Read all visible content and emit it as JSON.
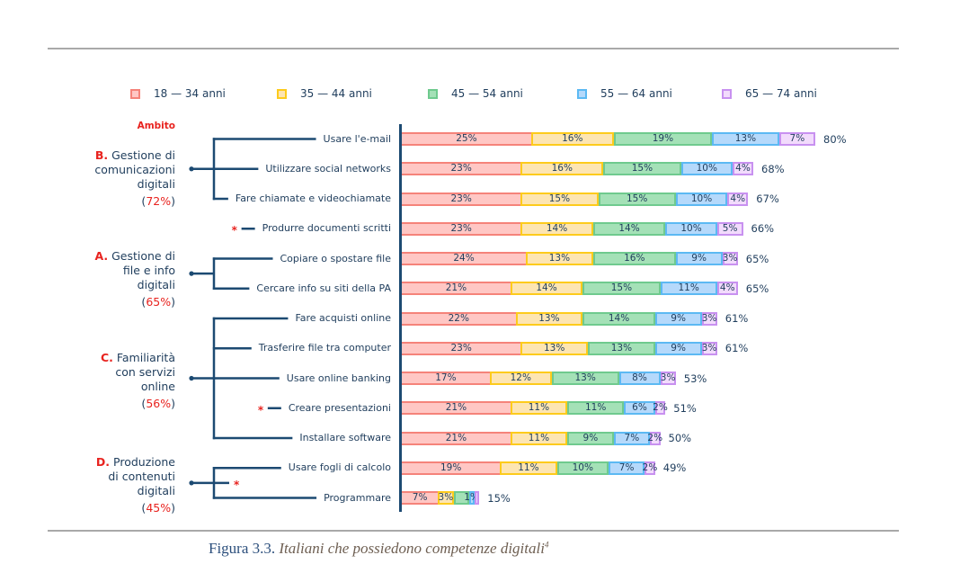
{
  "ambito_label": "Ambito",
  "asterisk": "*",
  "groups": [
    {
      "letter": "B.",
      "lines": [
        "Gestione di",
        "comunicazioni",
        "digitali"
      ],
      "pct": "72%",
      "rows": [
        0,
        1,
        2
      ],
      "starred": false
    },
    {
      "letter": "A.",
      "lines": [
        "Gestione di",
        "file e info",
        "digitali"
      ],
      "pct": "65%",
      "rows": [
        4,
        5
      ],
      "starred": false
    },
    {
      "letter": "C.",
      "lines": [
        "Familiarità",
        "con servizi",
        "online"
      ],
      "pct": "56%",
      "rows": [
        6,
        7,
        8,
        9,
        10
      ],
      "starred": false
    },
    {
      "letter": "D.",
      "lines": [
        "Produzione",
        "di contenuti",
        "digitali"
      ],
      "pct": "45%",
      "rows": [
        11,
        12
      ],
      "starred": true
    }
  ],
  "starred_rows": [
    3,
    9
  ],
  "caption": {
    "number": "Figura 3.3.",
    "title": "Italiani che possiedono competenze digitali",
    "footnote": "4"
  },
  "chart_data": {
    "type": "bar",
    "orientation": "horizontal",
    "stacked": true,
    "title": "",
    "xlabel": "",
    "ylabel": "Ambito",
    "legend_position": "top",
    "grid": false,
    "xlim": [
      0,
      80
    ],
    "categories": [
      "Usare l'e-mail",
      "Utilizzare social networks",
      "Fare chiamate e videochiamate",
      "Produrre documenti scritti",
      "Copiare o spostare file",
      "Cercare info su siti della PA",
      "Fare acquisti online",
      "Trasferire file tra computer",
      "Usare online banking",
      "Creare presentazioni",
      "Installare software",
      "Usare fogli di calcolo",
      "Programmare"
    ],
    "series": [
      {
        "id": "18-34",
        "name": "18 — 34 anni",
        "fill": "#ffc7c4",
        "border": "#f5837a",
        "values": [
          25,
          23,
          23,
          23,
          24,
          21,
          22,
          23,
          17,
          21,
          21,
          19,
          7
        ],
        "labels": [
          "25%",
          "23%",
          "23%",
          "23%",
          "24%",
          "21%",
          "22%",
          "23%",
          "17%",
          "21%",
          "21%",
          "19%",
          "7%"
        ]
      },
      {
        "id": "35-44",
        "name": "35 — 44 anni",
        "fill": "#fde5b2",
        "border": "#fdcb1c",
        "values": [
          16,
          16,
          15,
          14,
          13,
          14,
          13,
          13,
          12,
          11,
          11,
          11,
          3
        ],
        "labels": [
          "16%",
          "16%",
          "15%",
          "14%",
          "13%",
          "14%",
          "13%",
          "13%",
          "12%",
          "11%",
          "11%",
          "11%",
          "3%"
        ]
      },
      {
        "id": "45-54",
        "name": "45 — 54 anni",
        "fill": "#a4e1b7",
        "border": "#6fca8e",
        "values": [
          19,
          15,
          15,
          14,
          16,
          15,
          14,
          13,
          13,
          11,
          9,
          10,
          3
        ],
        "labels": [
          "19%",
          "15%",
          "15%",
          "14%",
          "16%",
          "15%",
          "14%",
          "13%",
          "13%",
          "11%",
          "9%",
          "10%",
          null
        ]
      },
      {
        "id": "55-64",
        "name": "55 — 64 anni",
        "fill": "#b5d9fb",
        "border": "#5cb9f3",
        "values": [
          13,
          10,
          10,
          10,
          9,
          11,
          9,
          9,
          8,
          6,
          7,
          7,
          1
        ],
        "labels": [
          "13%",
          "10%",
          "10%",
          "10%",
          "9%",
          "11%",
          "9%",
          "9%",
          "8%",
          "6%",
          "7%",
          "7%",
          "1%"
        ]
      },
      {
        "id": "65-74",
        "name": "65 — 74 anni",
        "fill": "#f2dbfc",
        "border": "#c891f0",
        "values": [
          7,
          4,
          4,
          5,
          3,
          4,
          3,
          3,
          3,
          2,
          2,
          2,
          1
        ],
        "labels": [
          "7%",
          "4%",
          "4%",
          "5%",
          "3%",
          "4%",
          "3%",
          "3%",
          "3%",
          "2%",
          "2%",
          "2%",
          null
        ]
      }
    ],
    "totals": [
      80,
      68,
      67,
      66,
      65,
      65,
      61,
      61,
      53,
      51,
      50,
      49,
      15
    ],
    "total_labels": [
      "80%",
      "68%",
      "67%",
      "66%",
      "65%",
      "65%",
      "61%",
      "61%",
      "53%",
      "51%",
      "50%",
      "49%",
      "15%"
    ]
  }
}
